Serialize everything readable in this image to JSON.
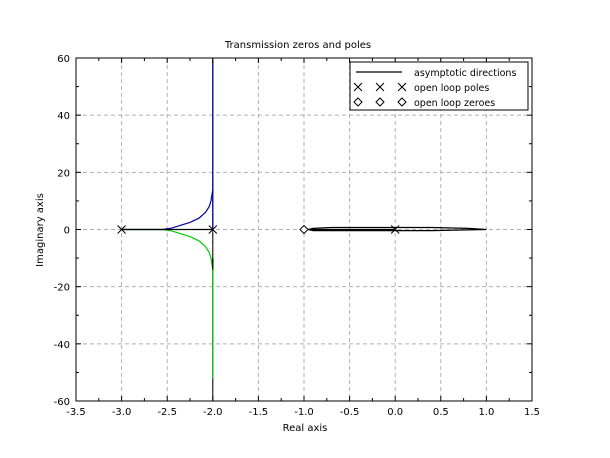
{
  "chart_data": {
    "type": "line",
    "title": "Transmission zeros and poles",
    "xlabel": "Real axis",
    "ylabel": "Imaginary axis",
    "xlim": [
      -3.5,
      1.5
    ],
    "ylim": [
      -60,
      60
    ],
    "grid": true,
    "legend_position": "top-right",
    "x_ticks": [
      -3.5,
      -3.0,
      -2.5,
      -2.0,
      -1.5,
      -1.0,
      -0.5,
      0.0,
      0.5,
      1.0,
      1.5
    ],
    "x_tick_labels": [
      "-3.5",
      "-3.0",
      "-2.5",
      "-2.0",
      "-1.5",
      "-1.0",
      "-0.5",
      "0.0",
      "0.5",
      "1.0",
      "1.5"
    ],
    "y_ticks": [
      -60,
      -40,
      -20,
      0,
      20,
      40,
      60
    ],
    "y_tick_labels": [
      "-60",
      "-40",
      "-20",
      "0",
      "20",
      "40",
      "60"
    ],
    "legend": [
      {
        "label": "asymptotic directions",
        "marker": "line"
      },
      {
        "label": "open loop poles",
        "marker": "x"
      },
      {
        "label": "open loop zeroes",
        "marker": "diamond"
      }
    ],
    "asymptotes": [
      {
        "x": [
          -2.0,
          -2.0
        ],
        "y": [
          0,
          60
        ]
      },
      {
        "x": [
          -2.0,
          -2.0
        ],
        "y": [
          0,
          -60
        ]
      }
    ],
    "branches": [
      {
        "color": "#0000aa",
        "x": [
          -3.0,
          -2.55,
          -2.45,
          -2.35,
          -2.25,
          -2.15,
          -2.08,
          -2.04,
          -2.02,
          -2.0
        ],
        "y": [
          0,
          0,
          0.5,
          1.5,
          2.5,
          4,
          6,
          8,
          10,
          14
        ]
      },
      {
        "color": "#0000aa",
        "x": [
          -2.0,
          -2.0
        ],
        "y": [
          0,
          59
        ]
      },
      {
        "color": "#00cc00",
        "x": [
          -3.0,
          -2.55,
          -2.45,
          -2.35,
          -2.25,
          -2.15,
          -2.08,
          -2.04,
          -2.02,
          -2.0
        ],
        "y": [
          0,
          0,
          -0.5,
          -1.5,
          -2.5,
          -4,
          -6,
          -8,
          -10,
          -14
        ]
      },
      {
        "color": "#00cc00",
        "x": [
          -2.0,
          -2.0
        ],
        "y": [
          -10,
          -52
        ]
      },
      {
        "color": "#000000",
        "x": [
          -2.0,
          -2.0
        ],
        "y": [
          -10,
          -14
        ]
      },
      {
        "color": "#000000",
        "x": [
          -3.0,
          -2.0
        ],
        "y": [
          0,
          0
        ]
      },
      {
        "color": "#000000",
        "x": [
          -0.95,
          -0.9,
          -0.7,
          -0.4,
          0.0,
          0.4,
          0.8,
          1.0,
          0.4,
          0.0,
          -0.4,
          -0.7,
          -0.9,
          -0.95
        ],
        "y": [
          0,
          0.4,
          0.7,
          0.7,
          0.7,
          0.7,
          0.4,
          0,
          -0.4,
          -0.4,
          -0.4,
          -0.4,
          -0.4,
          0
        ]
      },
      {
        "color": "#000000",
        "x": [
          -1.0,
          0.0
        ],
        "y": [
          0,
          0
        ]
      }
    ],
    "poles": [
      {
        "x": -3.0,
        "y": 0
      },
      {
        "x": -2.0,
        "y": 0
      },
      {
        "x": 0.0,
        "y": 0
      }
    ],
    "zeros": [
      {
        "x": -1.0,
        "y": 0
      }
    ]
  },
  "colors": {
    "grid": "#b0b0b0",
    "axes": "#000000",
    "background": "#ffffff"
  }
}
